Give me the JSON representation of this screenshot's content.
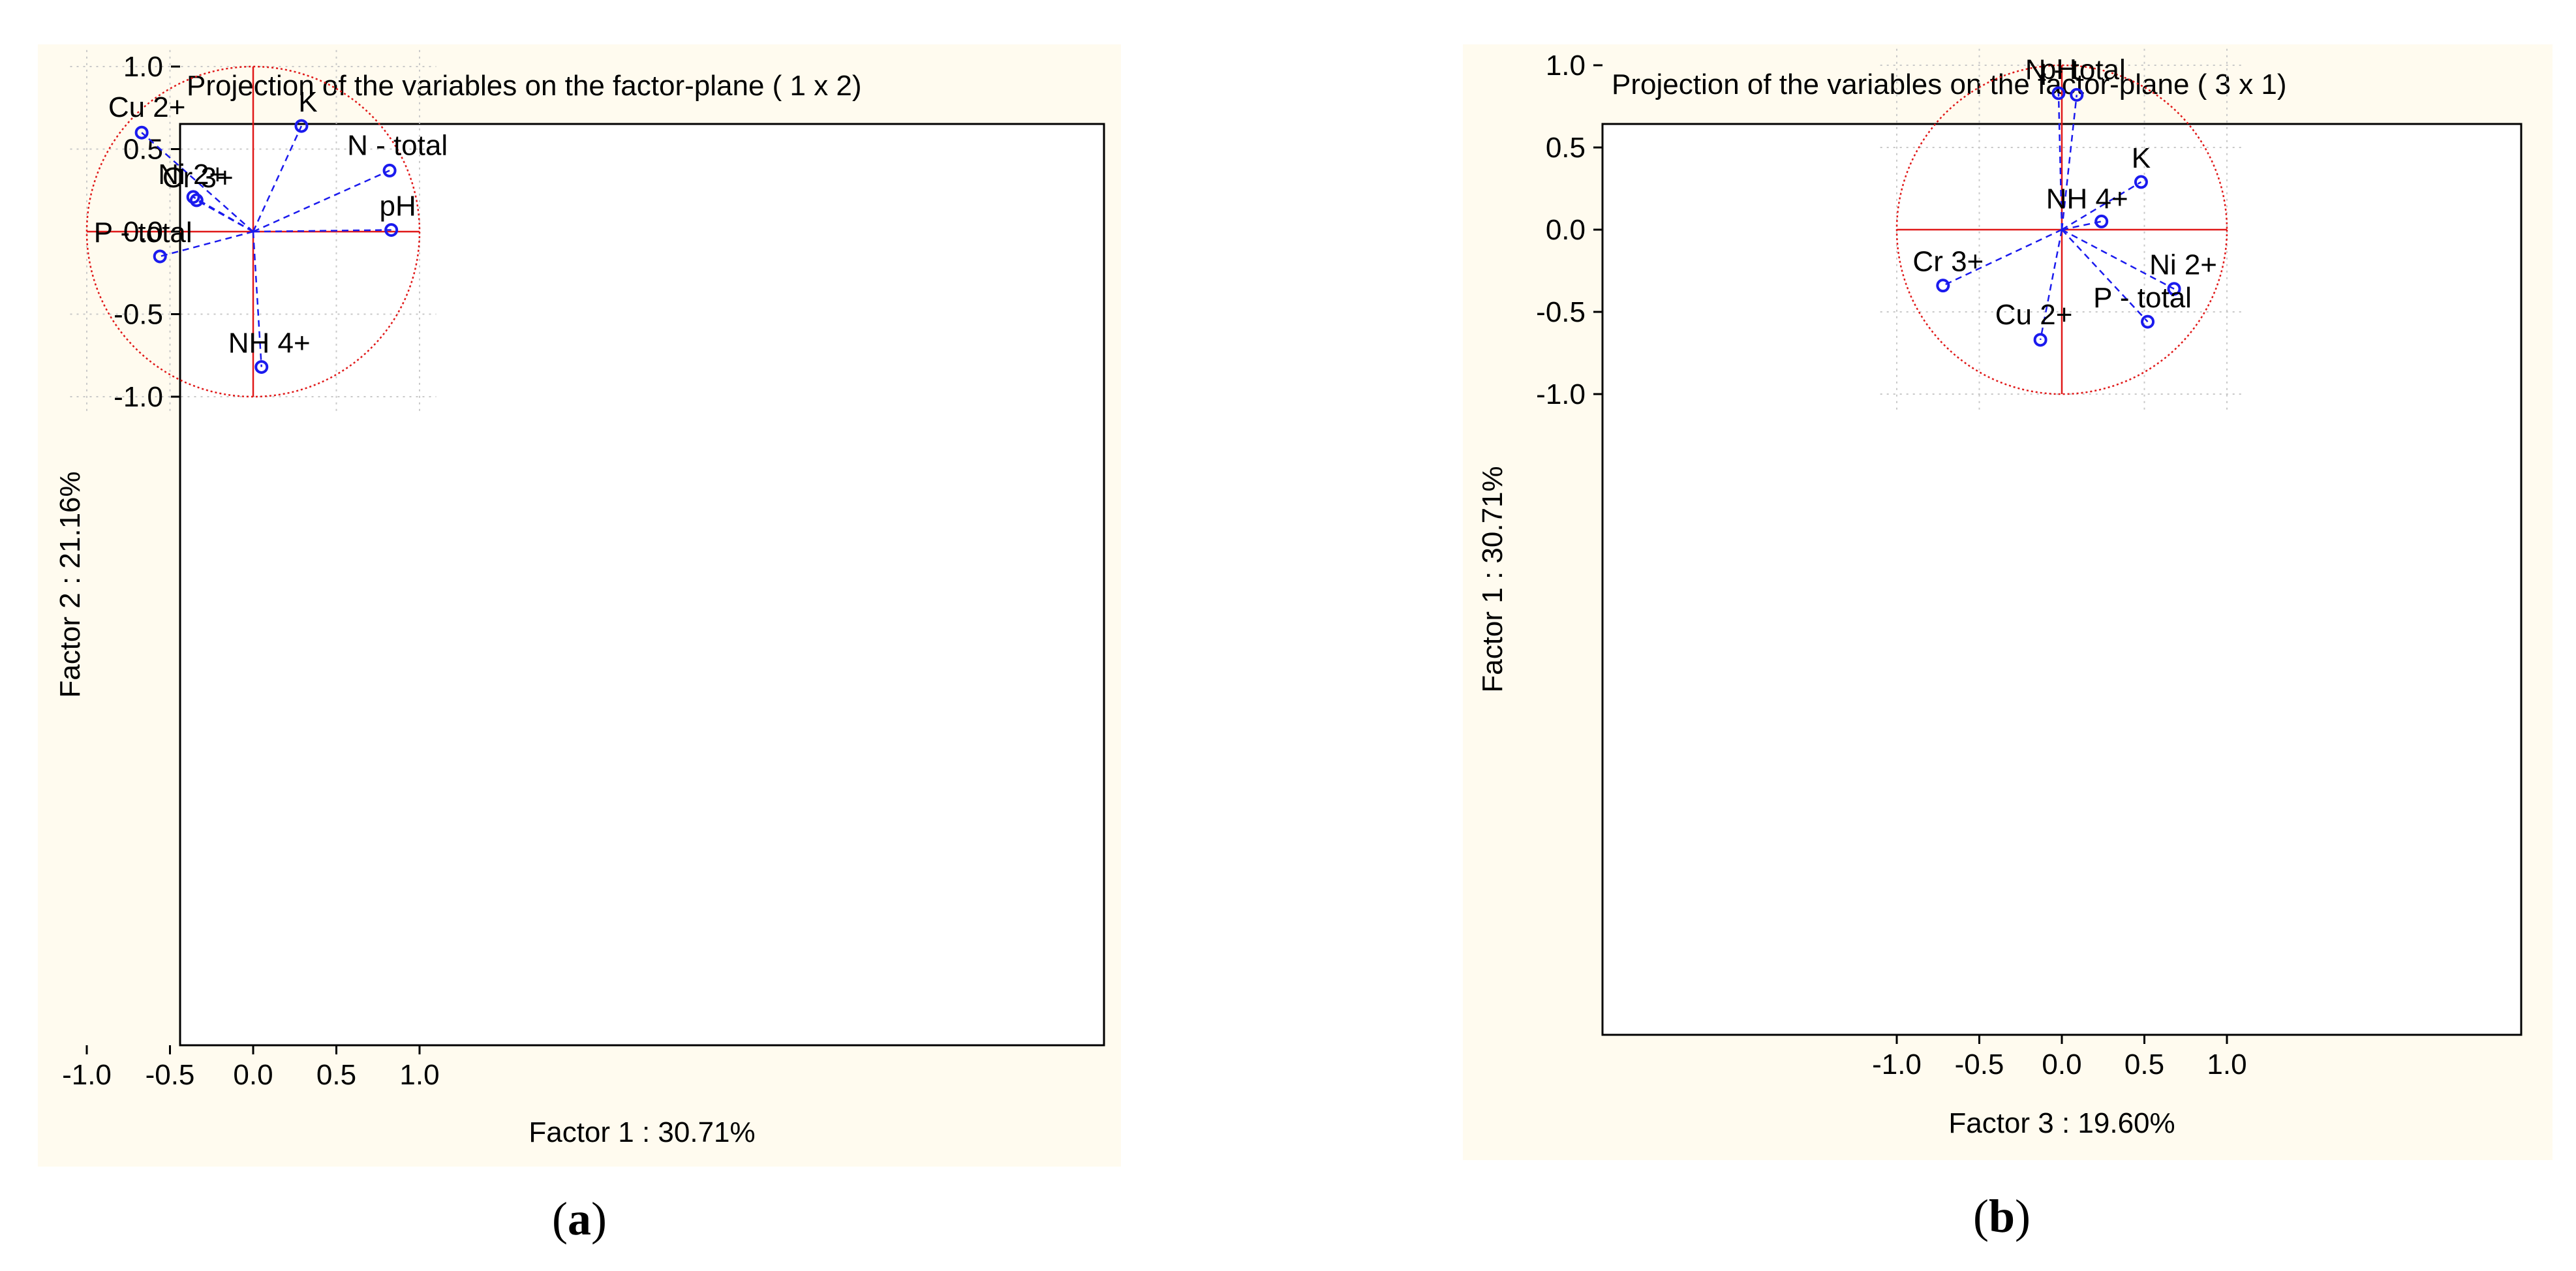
{
  "colors": {
    "vector": "#1a1aee",
    "circle": "#e01818",
    "panel_bg": "#fffbef",
    "grid": "#c8c8c8"
  },
  "chart_data": [
    {
      "type": "scatter",
      "panel_label": "a",
      "title": "Projection of the variables on the factor-plane (  1 x   2)",
      "xlabel": "Factor 1 : 30.71%",
      "ylabel": "Factor 2 : 21.16%",
      "xlim": [
        -1.1,
        1.1
      ],
      "ylim": [
        -1.1,
        1.1
      ],
      "xticks": [
        -1.0,
        -0.5,
        0.0,
        0.5,
        1.0
      ],
      "yticks": [
        -1.0,
        -0.5,
        0.0,
        0.5,
        1.0
      ],
      "xtick_labels": [
        "-1.0",
        "-0.5",
        "0.0",
        "0.5",
        "1.0"
      ],
      "ytick_labels": [
        "-1.0",
        "-0.5",
        "0.0",
        "0.5",
        "1.0"
      ],
      "grid": true,
      "unit_circle": true,
      "points": [
        {
          "label": "Cu 2+",
          "x": -0.67,
          "y": 0.6
        },
        {
          "label": "K",
          "x": 0.29,
          "y": 0.64
        },
        {
          "label": "N - total",
          "x": 0.82,
          "y": 0.37
        },
        {
          "label": "Ni 2+",
          "x": -0.36,
          "y": 0.21
        },
        {
          "label": "Cr 3+",
          "x": -0.34,
          "y": 0.19
        },
        {
          "label": "pH",
          "x": 0.83,
          "y": 0.01
        },
        {
          "label": "P - total",
          "x": -0.56,
          "y": -0.15
        },
        {
          "label": "NH 4+",
          "x": 0.05,
          "y": -0.82
        }
      ]
    },
    {
      "type": "scatter",
      "panel_label": "b",
      "title": "Projection of the variables on the factor-plane (  3 x   1)",
      "xlabel": "Factor 3 : 19.60%",
      "ylabel": "Factor 1 : 30.71%",
      "xlim": [
        -1.1,
        1.1
      ],
      "ylim": [
        -1.1,
        1.1
      ],
      "xticks": [
        -1.0,
        -0.5,
        0.0,
        0.5,
        1.0
      ],
      "yticks": [
        -1.0,
        -0.5,
        0.0,
        0.5,
        1.0
      ],
      "xtick_labels": [
        "-1.0",
        "-0.5",
        "0.0",
        "0.5",
        "1.0"
      ],
      "ytick_labels": [
        "-1.0",
        "-0.5",
        "0.0",
        "0.5",
        "1.0"
      ],
      "grid": true,
      "unit_circle": true,
      "points": [
        {
          "label": "pH",
          "x": -0.02,
          "y": 0.83
        },
        {
          "label": "N - total",
          "x": 0.09,
          "y": 0.82
        },
        {
          "label": "K",
          "x": 0.48,
          "y": 0.29
        },
        {
          "label": "NH 4+",
          "x": 0.24,
          "y": 0.05
        },
        {
          "label": "Cr 3+",
          "x": -0.72,
          "y": -0.34
        },
        {
          "label": "Ni 2+",
          "x": 0.68,
          "y": -0.36
        },
        {
          "label": "P - total",
          "x": 0.52,
          "y": -0.56
        },
        {
          "label": "Cu 2+",
          "x": -0.13,
          "y": -0.67
        }
      ]
    }
  ]
}
